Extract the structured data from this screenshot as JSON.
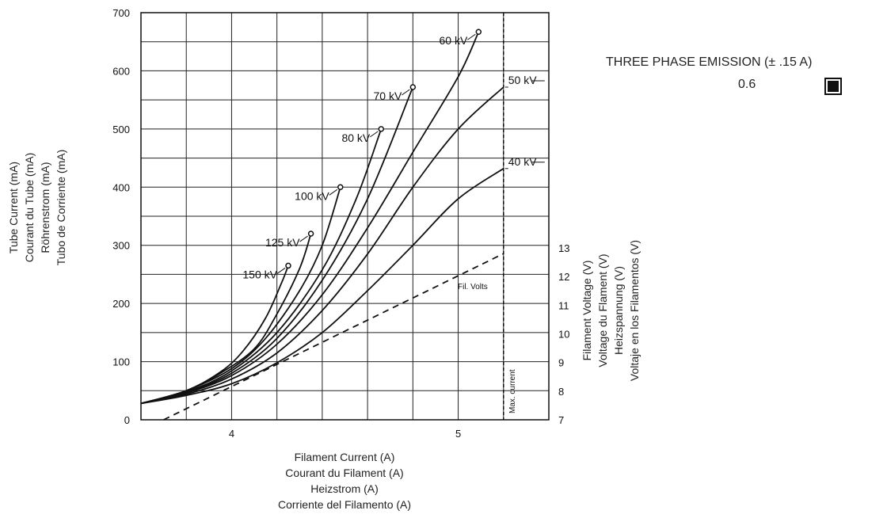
{
  "legend": {
    "title": "THREE PHASE EMISSION (± .15 A)",
    "value": "0.6",
    "swatch_color": "#111111"
  },
  "chart_data": {
    "type": "line",
    "x_title": [
      "Filament Current (A)",
      "Courant du Filament (A)",
      "Heizstrom (A)",
      "Corriente del Filamento (A)"
    ],
    "y_title": [
      "Tube Current (mA)",
      "Courant du Tube (mA)",
      "Röhrenstrom (mA)",
      "Tubo de Corriente (mA)"
    ],
    "y2_title": [
      "Filament Voltage (V)",
      "Voltage du Flament  (V)",
      "Heizspannung (V)",
      "Voltaje en los Filamentos (V)"
    ],
    "xlim": [
      3.6,
      5.4
    ],
    "ylim": [
      0,
      700
    ],
    "y2lim": [
      7,
      13
    ],
    "x_ticks": [
      4,
      5
    ],
    "y_ticks": [
      0,
      100,
      200,
      300,
      400,
      500,
      600,
      700
    ],
    "y2_ticks": [
      7,
      8,
      9,
      10,
      11,
      12,
      13
    ],
    "grid": true,
    "max_current": {
      "x": 5.2,
      "label": "Max. current"
    },
    "series": [
      {
        "name": "150 kV",
        "points": [
          [
            3.6,
            28
          ],
          [
            3.8,
            50
          ],
          [
            3.95,
            82
          ],
          [
            4.05,
            118
          ],
          [
            4.15,
            175
          ],
          [
            4.22,
            235
          ],
          [
            4.25,
            265
          ]
        ],
        "end_marker": true
      },
      {
        "name": "125 kV",
        "points": [
          [
            3.6,
            28
          ],
          [
            3.8,
            50
          ],
          [
            3.95,
            80
          ],
          [
            4.1,
            122
          ],
          [
            4.2,
            182
          ],
          [
            4.3,
            260
          ],
          [
            4.35,
            320
          ]
        ],
        "end_marker": true
      },
      {
        "name": "100 kV",
        "points": [
          [
            3.6,
            28
          ],
          [
            3.8,
            50
          ],
          [
            4.0,
            88
          ],
          [
            4.15,
            140
          ],
          [
            4.3,
            222
          ],
          [
            4.4,
            300
          ],
          [
            4.48,
            400
          ]
        ],
        "end_marker": true
      },
      {
        "name": "80 kV",
        "points": [
          [
            3.6,
            28
          ],
          [
            3.8,
            48
          ],
          [
            4.0,
            84
          ],
          [
            4.2,
            150
          ],
          [
            4.4,
            258
          ],
          [
            4.55,
            380
          ],
          [
            4.66,
            500
          ]
        ],
        "end_marker": true
      },
      {
        "name": "70 kV",
        "points": [
          [
            3.6,
            28
          ],
          [
            3.8,
            47
          ],
          [
            4.0,
            80
          ],
          [
            4.2,
            140
          ],
          [
            4.4,
            240
          ],
          [
            4.6,
            380
          ],
          [
            4.8,
            572
          ]
        ],
        "end_marker": true
      },
      {
        "name": "60 kV",
        "points": [
          [
            3.6,
            28
          ],
          [
            3.8,
            46
          ],
          [
            4.0,
            76
          ],
          [
            4.2,
            130
          ],
          [
            4.4,
            215
          ],
          [
            4.6,
            330
          ],
          [
            4.8,
            460
          ],
          [
            5.0,
            590
          ],
          [
            5.09,
            667
          ]
        ],
        "end_marker": true
      },
      {
        "name": "50 kV",
        "points": [
          [
            3.6,
            28
          ],
          [
            3.8,
            44
          ],
          [
            4.0,
            70
          ],
          [
            4.2,
            115
          ],
          [
            4.4,
            188
          ],
          [
            4.6,
            285
          ],
          [
            4.8,
            400
          ],
          [
            5.0,
            500
          ],
          [
            5.2,
            572
          ]
        ],
        "end_marker": false
      },
      {
        "name": "40 kV",
        "points": [
          [
            3.6,
            28
          ],
          [
            3.8,
            42
          ],
          [
            4.0,
            62
          ],
          [
            4.2,
            98
          ],
          [
            4.4,
            150
          ],
          [
            4.6,
            222
          ],
          [
            4.8,
            300
          ],
          [
            5.0,
            380
          ],
          [
            5.2,
            432
          ]
        ],
        "end_marker": false
      }
    ],
    "voltage_line": {
      "name": "Fil. Volts",
      "points": [
        [
          3.7,
          7.0
        ],
        [
          5.2,
          12.8
        ]
      ]
    }
  }
}
